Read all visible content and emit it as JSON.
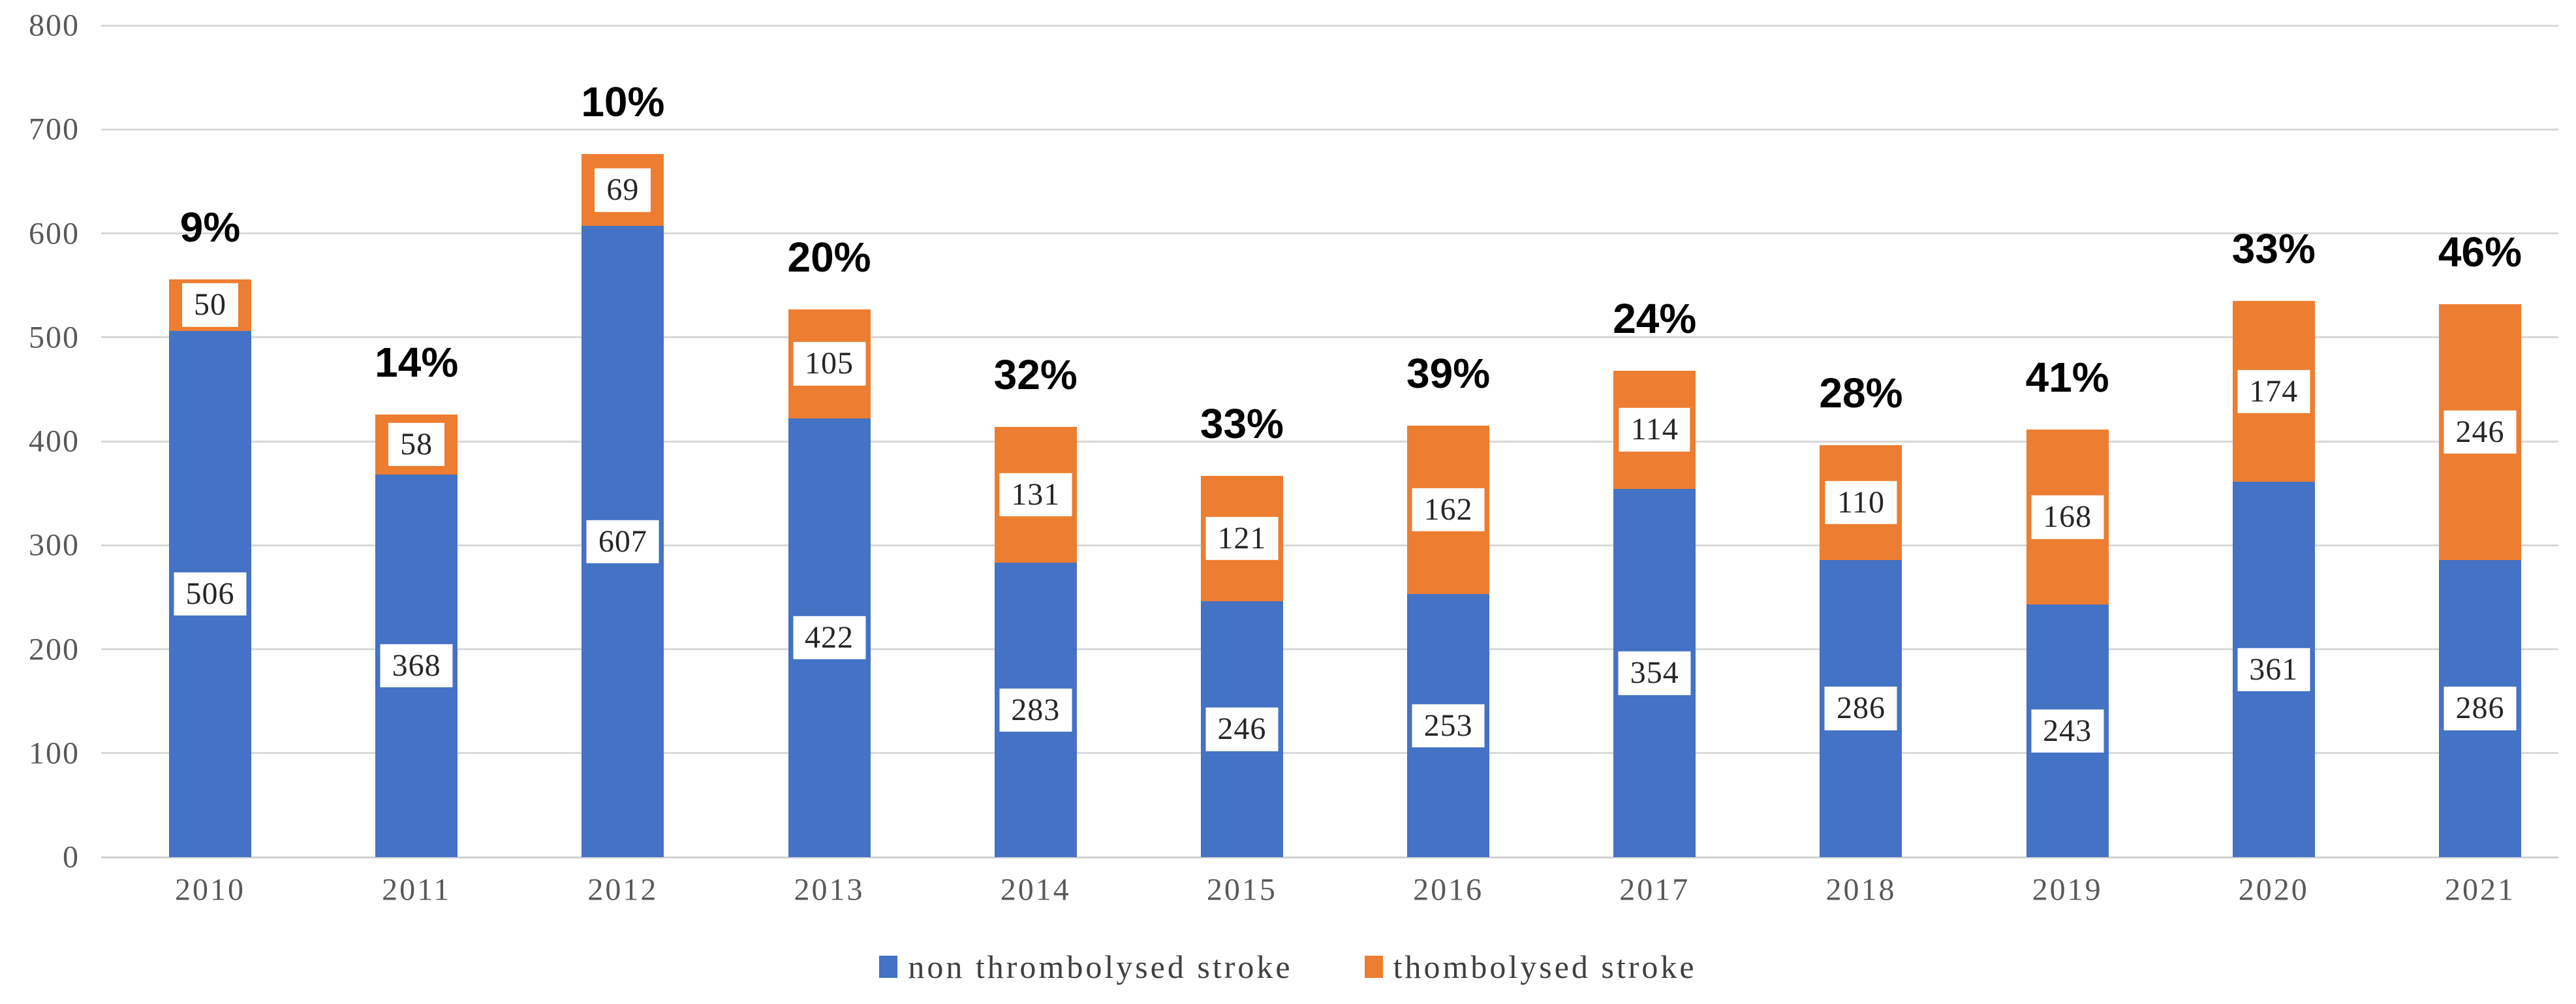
{
  "chart_data": {
    "type": "bar",
    "stacked": true,
    "title": "",
    "xlabel": "",
    "ylabel": "",
    "categories": [
      "2010",
      "2011",
      "2012",
      "2013",
      "2014",
      "2015",
      "2016",
      "2017",
      "2018",
      "2019",
      "2020",
      "2021"
    ],
    "series": [
      {
        "name": "non thrombolysed stroke",
        "color": "#4472C4",
        "values": [
          506,
          368,
          607,
          422,
          283,
          246,
          253,
          354,
          286,
          243,
          361,
          286
        ]
      },
      {
        "name": "thombolysed stroke",
        "color": "#ED7D31",
        "values": [
          50,
          58,
          69,
          105,
          131,
          121,
          162,
          114,
          110,
          168,
          174,
          246
        ]
      }
    ],
    "percent_labels": [
      "9%",
      "14%",
      "10%",
      "20%",
      "32%",
      "33%",
      "39%",
      "24%",
      "28%",
      "41%",
      "33%",
      "46%"
    ],
    "y_axis": {
      "min": 0,
      "max": 800,
      "step": 100,
      "tick_labels": [
        "0",
        "100",
        "200",
        "300",
        "400",
        "500",
        "600",
        "700",
        "800"
      ]
    },
    "grid": true,
    "legend_position": "bottom",
    "colors": {
      "grid": "#D9D9D9",
      "axis_text": "#595959",
      "data_label_text": "#262626",
      "percent_label_text": "#000000",
      "background": "#FFFFFF"
    }
  }
}
